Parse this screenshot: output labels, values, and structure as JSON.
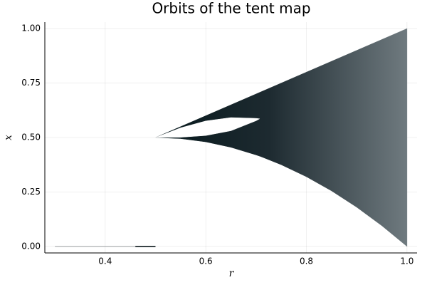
{
  "chart_data": {
    "type": "range",
    "title": "Orbits of the tent map",
    "xlabel": "r",
    "ylabel": "x",
    "band": {
      "x": [
        0.5,
        0.55,
        0.6,
        0.65,
        0.7,
        0.71,
        0.75,
        0.8,
        0.85,
        0.9,
        0.95,
        1.0
      ],
      "high": [
        0.5,
        0.55,
        0.6,
        0.65,
        0.7,
        0.71,
        0.75,
        0.8,
        0.85,
        0.9,
        0.95,
        1.0
      ],
      "low": [
        0.5,
        0.495,
        0.48,
        0.455,
        0.42,
        0.412,
        0.375,
        0.32,
        0.255,
        0.18,
        0.095,
        0.0
      ]
    },
    "gap": {
      "x": [
        0.5,
        0.55,
        0.6,
        0.65,
        0.7,
        0.707
      ],
      "high": [
        0.5,
        0.5445,
        0.576,
        0.5915,
        0.588,
        0.586
      ],
      "low": [
        0.5,
        0.501,
        0.509,
        0.531,
        0.577,
        0.586
      ]
    },
    "floor": {
      "x": [
        0.3,
        0.5
      ],
      "values": [
        0,
        0
      ]
    },
    "floor_dense": {
      "x": [
        0.46,
        0.5
      ],
      "values": [
        0,
        0
      ]
    },
    "color": "#0f1a1e",
    "xlim": [
      0.28,
      1.02
    ],
    "ylim": [
      -0.03,
      1.03
    ],
    "xticks": [
      0.4,
      0.6,
      0.8,
      {
        "value": 1,
        "label": "1.0"
      }
    ],
    "yticks": [
      {
        "value": 0,
        "label": "0.00"
      },
      {
        "value": 0.25,
        "label": "0.25"
      },
      {
        "value": 0.5,
        "label": "0.50"
      },
      {
        "value": 0.75,
        "label": "0.75"
      },
      {
        "value": 1,
        "label": "1.00"
      }
    ],
    "grid": true
  }
}
